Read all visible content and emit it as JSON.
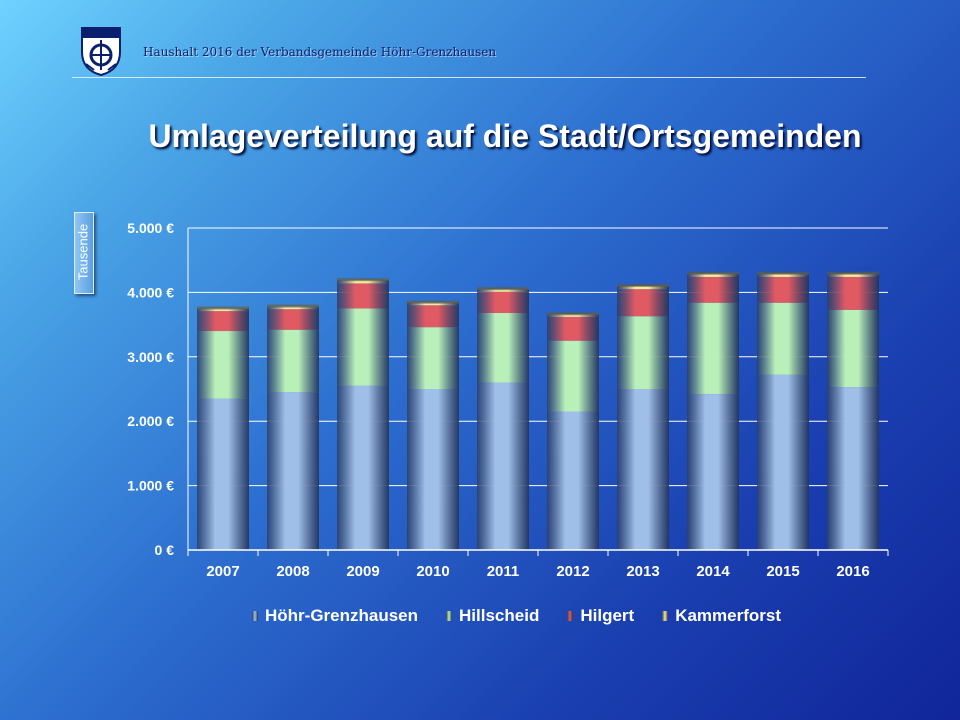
{
  "header": {
    "text": "Haushalt 2016 der Verbandsgemeinde Höhr-Grenzhausen"
  },
  "title": "Umlageverteilung auf die Stadt/Ortsgemeinden",
  "chart_data": {
    "type": "bar",
    "stacked": true,
    "title": "Umlageverteilung auf die Stadt/Ortsgemeinden",
    "ylabel": "Tausende",
    "xlabel": "",
    "categories": [
      "2007",
      "2008",
      "2009",
      "2010",
      "2011",
      "2012",
      "2013",
      "2014",
      "2015",
      "2016"
    ],
    "ylim": [
      0,
      5000
    ],
    "yticks": [
      0,
      1000,
      2000,
      3000,
      4000,
      5000
    ],
    "ytick_labels": [
      "0 €",
      "1.000 €",
      "2.000 €",
      "3.000 €",
      "4.000 €",
      "5.000 €"
    ],
    "grid": true,
    "legend_position": "bottom",
    "series": [
      {
        "name": "Höhr-Grenzhausen",
        "color": "#9fbfe8",
        "values": [
          2350,
          2450,
          2550,
          2500,
          2600,
          2150,
          2500,
          2420,
          2720,
          2530
        ]
      },
      {
        "name": "Hillscheid",
        "color": "#b9f0b9",
        "values": [
          1050,
          970,
          1200,
          960,
          1080,
          1100,
          1130,
          1420,
          1120,
          1200
        ]
      },
      {
        "name": "Hilgert",
        "color": "#e05a64",
        "values": [
          310,
          320,
          390,
          340,
          330,
          370,
          420,
          400,
          400,
          510
        ]
      },
      {
        "name": "Kammerforst",
        "color": "#f0eca0",
        "values": [
          40,
          40,
          50,
          40,
          40,
          40,
          50,
          50,
          50,
          50
        ]
      }
    ]
  },
  "icons": {
    "crest": "coat-of-arms-icon"
  }
}
